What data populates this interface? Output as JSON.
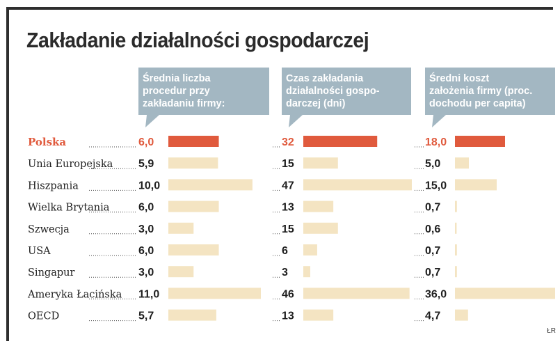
{
  "title": "Zakładanie działalności gospodarczej",
  "credit": "ŁR",
  "colors": {
    "highlight": "#e05a3d",
    "bar": "#f4e4c2",
    "header": "#a3b7c2"
  },
  "chart_data": {
    "type": "bar",
    "title": "Zakładanie działalności gospodarczej",
    "categories": [
      "Polska",
      "Unia Europejska",
      "Hiszpania",
      "Wielka Brytania",
      "Szwecja",
      "USA",
      "Singapur",
      "Ameryka Łacińska",
      "OECD"
    ],
    "highlight_category": "Polska",
    "series": [
      {
        "name": "Średnia liczba procedur przy zakładaniu firmy:",
        "header_lines": [
          "Średnia liczba",
          "procedur przy",
          "zakładaniu firmy:"
        ],
        "values": [
          6.0,
          5.9,
          10.0,
          6.0,
          3.0,
          6.0,
          3.0,
          11.0,
          5.7
        ],
        "labels": [
          "6,0",
          "5,9",
          "10,0",
          "6,0",
          "3,0",
          "6,0",
          "3,0",
          "11,0",
          "5,7"
        ],
        "max": 11.0
      },
      {
        "name": "Czas zakładania działalności gospodarczej (dni)",
        "header_lines": [
          "Czas zakładania",
          "działalności gospo-",
          "darczej (dni)"
        ],
        "values": [
          32,
          15,
          47,
          13,
          15,
          6,
          3,
          46,
          13
        ],
        "labels": [
          "32",
          "15",
          "47",
          "13",
          "15",
          "6",
          "3",
          "46",
          "13"
        ],
        "max": 47
      },
      {
        "name": "Średni koszt założenia firmy (proc. dochodu per capita)",
        "header_lines": [
          "Średni koszt",
          "założenia firmy (proc.",
          "dochodu per capita)"
        ],
        "values": [
          18.0,
          5.0,
          15.0,
          0.7,
          0.6,
          0.7,
          0.7,
          36.0,
          4.7
        ],
        "labels": [
          "18,0",
          "5,0",
          "15,0",
          "0,7",
          "0,6",
          "0,7",
          "0,7",
          "36,0",
          "4,7"
        ],
        "max": 36.0
      }
    ]
  }
}
